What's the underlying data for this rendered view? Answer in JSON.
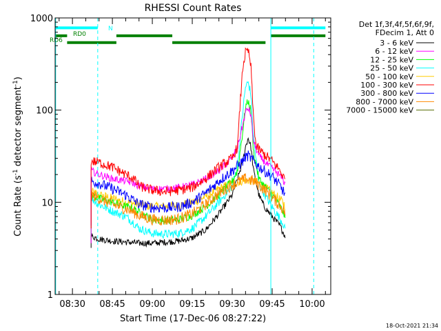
{
  "chart_data": {
    "type": "line",
    "title": "RHESSI Count Rates",
    "xlabel": "Start Time (17-Dec-06 08:27:22)",
    "ylabel_main": "Count Rate (s",
    "ylabel_exp1": "-1",
    "ylabel_mid": " detector segment",
    "ylabel_exp2": "-1",
    "ylabel_end": ")",
    "y_scale": "log",
    "ylim": [
      1,
      1000
    ],
    "xlim_minutes": [
      503.5,
      607
    ],
    "x_ticks": [
      {
        "label": "08:30",
        "minute": 510
      },
      {
        "label": "08:45",
        "minute": 525
      },
      {
        "label": "09:00",
        "minute": 540
      },
      {
        "label": "09:15",
        "minute": 555
      },
      {
        "label": "09:30",
        "minute": 570
      },
      {
        "label": "09:45",
        "minute": 585
      },
      {
        "label": "10:00",
        "minute": 600
      }
    ],
    "y_ticks": [
      {
        "label": "1",
        "value": 1
      },
      {
        "label": "10",
        "value": 10
      },
      {
        "label": "100",
        "value": 100
      },
      {
        "label": "1000",
        "value": 1000
      }
    ],
    "legend": {
      "placement": "right",
      "header_line1": "Det 1f,3f,4f,5f,6f,9f,",
      "header_line2": "FDecim 1, Att 0"
    },
    "series": [
      {
        "name": "3 - 6 keV",
        "color": "#000000",
        "points": [
          [
            517,
            4.3
          ],
          [
            520,
            4.0
          ],
          [
            525,
            3.8
          ],
          [
            530,
            3.7
          ],
          [
            535,
            3.6
          ],
          [
            540,
            3.6
          ],
          [
            545,
            3.7
          ],
          [
            550,
            3.8
          ],
          [
            555,
            4.1
          ],
          [
            560,
            5.0
          ],
          [
            565,
            7.5
          ],
          [
            570,
            12
          ],
          [
            572,
            18
          ],
          [
            574,
            28
          ],
          [
            575,
            40
          ],
          [
            576,
            50
          ],
          [
            577,
            40
          ],
          [
            578,
            22
          ],
          [
            580,
            12
          ],
          [
            582,
            9
          ],
          [
            585,
            7
          ],
          [
            588,
            5.5
          ],
          [
            590,
            4.2
          ]
        ]
      },
      {
        "name": "6 - 12 keV",
        "color": "#ff00ff",
        "points": [
          [
            517,
            22
          ],
          [
            520,
            20
          ],
          [
            525,
            18
          ],
          [
            530,
            17
          ],
          [
            533,
            16
          ],
          [
            535,
            15
          ],
          [
            540,
            14
          ],
          [
            545,
            14
          ],
          [
            550,
            14.5
          ],
          [
            555,
            15.5
          ],
          [
            560,
            18
          ],
          [
            565,
            22
          ],
          [
            570,
            30
          ],
          [
            572,
            40
          ],
          [
            574,
            70
          ],
          [
            575,
            95
          ],
          [
            576,
            105
          ],
          [
            577,
            90
          ],
          [
            578,
            45
          ],
          [
            580,
            32
          ],
          [
            583,
            26
          ],
          [
            586,
            22
          ],
          [
            589,
            18
          ],
          [
            590,
            15
          ]
        ]
      },
      {
        "name": "12 - 25 keV",
        "color": "#00ff00",
        "points": [
          [
            517,
            12
          ],
          [
            520,
            11
          ],
          [
            525,
            10
          ],
          [
            530,
            9
          ],
          [
            533,
            8.5
          ],
          [
            535,
            7.8
          ],
          [
            540,
            6.5
          ],
          [
            545,
            6.3
          ],
          [
            550,
            6.5
          ],
          [
            555,
            7.2
          ],
          [
            560,
            9
          ],
          [
            565,
            12
          ],
          [
            570,
            17
          ],
          [
            572,
            22
          ],
          [
            574,
            60
          ],
          [
            575,
            110
          ],
          [
            576,
            125
          ],
          [
            577,
            100
          ],
          [
            578,
            35
          ],
          [
            580,
            18
          ],
          [
            583,
            14
          ],
          [
            586,
            11
          ],
          [
            589,
            8
          ],
          [
            590,
            6.5
          ]
        ]
      },
      {
        "name": "25 - 50 keV",
        "color": "#00ffff",
        "points": [
          [
            517,
            11
          ],
          [
            520,
            9.5
          ],
          [
            525,
            8
          ],
          [
            530,
            7
          ],
          [
            533,
            6
          ],
          [
            535,
            5.2
          ],
          [
            540,
            4.6
          ],
          [
            545,
            4.5
          ],
          [
            550,
            4.6
          ],
          [
            555,
            5.2
          ],
          [
            560,
            7
          ],
          [
            565,
            10
          ],
          [
            570,
            15
          ],
          [
            572,
            25
          ],
          [
            574,
            100
          ],
          [
            575,
            180
          ],
          [
            576,
            200
          ],
          [
            577,
            150
          ],
          [
            578,
            50
          ],
          [
            580,
            16
          ],
          [
            583,
            11
          ],
          [
            586,
            8
          ],
          [
            589,
            6
          ],
          [
            590,
            4.8
          ]
        ]
      },
      {
        "name": "50 - 100 keV",
        "color": "#ffcc00",
        "points": [
          [
            517,
            13
          ],
          [
            520,
            12
          ],
          [
            525,
            11
          ],
          [
            530,
            10
          ],
          [
            535,
            9.5
          ],
          [
            540,
            9
          ],
          [
            545,
            9
          ],
          [
            550,
            9.2
          ],
          [
            555,
            10
          ],
          [
            560,
            11.5
          ],
          [
            565,
            14
          ],
          [
            570,
            16
          ],
          [
            575,
            17.5
          ],
          [
            578,
            17
          ],
          [
            580,
            16
          ],
          [
            583,
            14
          ],
          [
            586,
            12
          ],
          [
            589,
            10
          ],
          [
            590,
            9
          ]
        ]
      },
      {
        "name": "100 - 300 keV",
        "color": "#ff0000",
        "points": [
          [
            517,
            28
          ],
          [
            520,
            27
          ],
          [
            525,
            24
          ],
          [
            530,
            20
          ],
          [
            533,
            18
          ],
          [
            535,
            15
          ],
          [
            540,
            13.5
          ],
          [
            545,
            13
          ],
          [
            550,
            13.5
          ],
          [
            555,
            14.5
          ],
          [
            560,
            18
          ],
          [
            565,
            24
          ],
          [
            570,
            30
          ],
          [
            572,
            40
          ],
          [
            573,
            120
          ],
          [
            574,
            300
          ],
          [
            575,
            420
          ],
          [
            576,
            440
          ],
          [
            577,
            300
          ],
          [
            578,
            80
          ],
          [
            579,
            40
          ],
          [
            582,
            33
          ],
          [
            585,
            28
          ],
          [
            588,
            22
          ],
          [
            590,
            17
          ]
        ]
      },
      {
        "name": "300 - 800 keV",
        "color": "#0000ff",
        "points": [
          [
            517,
            17
          ],
          [
            520,
            16
          ],
          [
            525,
            14
          ],
          [
            530,
            12
          ],
          [
            533,
            10.5
          ],
          [
            535,
            9.5
          ],
          [
            540,
            8.8
          ],
          [
            545,
            8.7
          ],
          [
            550,
            8.9
          ],
          [
            555,
            10
          ],
          [
            560,
            12.5
          ],
          [
            565,
            17
          ],
          [
            570,
            22
          ],
          [
            574,
            28
          ],
          [
            575,
            31
          ],
          [
            576,
            32
          ],
          [
            577,
            30
          ],
          [
            579,
            26
          ],
          [
            582,
            22
          ],
          [
            585,
            19
          ],
          [
            588,
            15
          ],
          [
            590,
            12
          ]
        ]
      },
      {
        "name": "800 - 7000 keV",
        "color": "#ff8800",
        "points": [
          [
            517,
            12
          ],
          [
            520,
            11
          ],
          [
            525,
            9.5
          ],
          [
            530,
            8.5
          ],
          [
            533,
            7.8
          ],
          [
            535,
            7.2
          ],
          [
            540,
            6.5
          ],
          [
            545,
            6.4
          ],
          [
            550,
            6.6
          ],
          [
            555,
            7.5
          ],
          [
            560,
            9.5
          ],
          [
            565,
            12.5
          ],
          [
            570,
            15.5
          ],
          [
            575,
            18
          ],
          [
            578,
            17
          ],
          [
            580,
            15.5
          ],
          [
            583,
            13
          ],
          [
            586,
            10.5
          ],
          [
            589,
            8.5
          ],
          [
            590,
            7.5
          ]
        ]
      },
      {
        "name": "7000 - 15000 keV",
        "color": "#556b00",
        "points": []
      }
    ],
    "attenuator_bars": [
      {
        "label": "N",
        "color": "#00ffff",
        "y_value": 780,
        "segments": [
          [
            503.5,
            519.5
          ],
          [
            584.5,
            605
          ]
        ]
      },
      {
        "label": "RD0",
        "color": "#008000",
        "y_value": 640,
        "segments": [
          [
            503.5,
            508
          ],
          [
            526.5,
            547.5
          ],
          [
            584.5,
            605
          ]
        ]
      },
      {
        "label": "RD6",
        "color": "#008000",
        "y_value": 540,
        "segments": [
          [
            508,
            526.5
          ],
          [
            547.5,
            582.5
          ]
        ]
      }
    ],
    "vlines": [
      {
        "minute": 503.7,
        "style": "solid"
      },
      {
        "minute": 519.5,
        "style": "dashed"
      },
      {
        "minute": 584.5,
        "style": "solid"
      },
      {
        "minute": 600.6,
        "style": "dashed"
      }
    ],
    "grid": false,
    "footer_timestamp": "18-Oct-2021 21:34"
  }
}
